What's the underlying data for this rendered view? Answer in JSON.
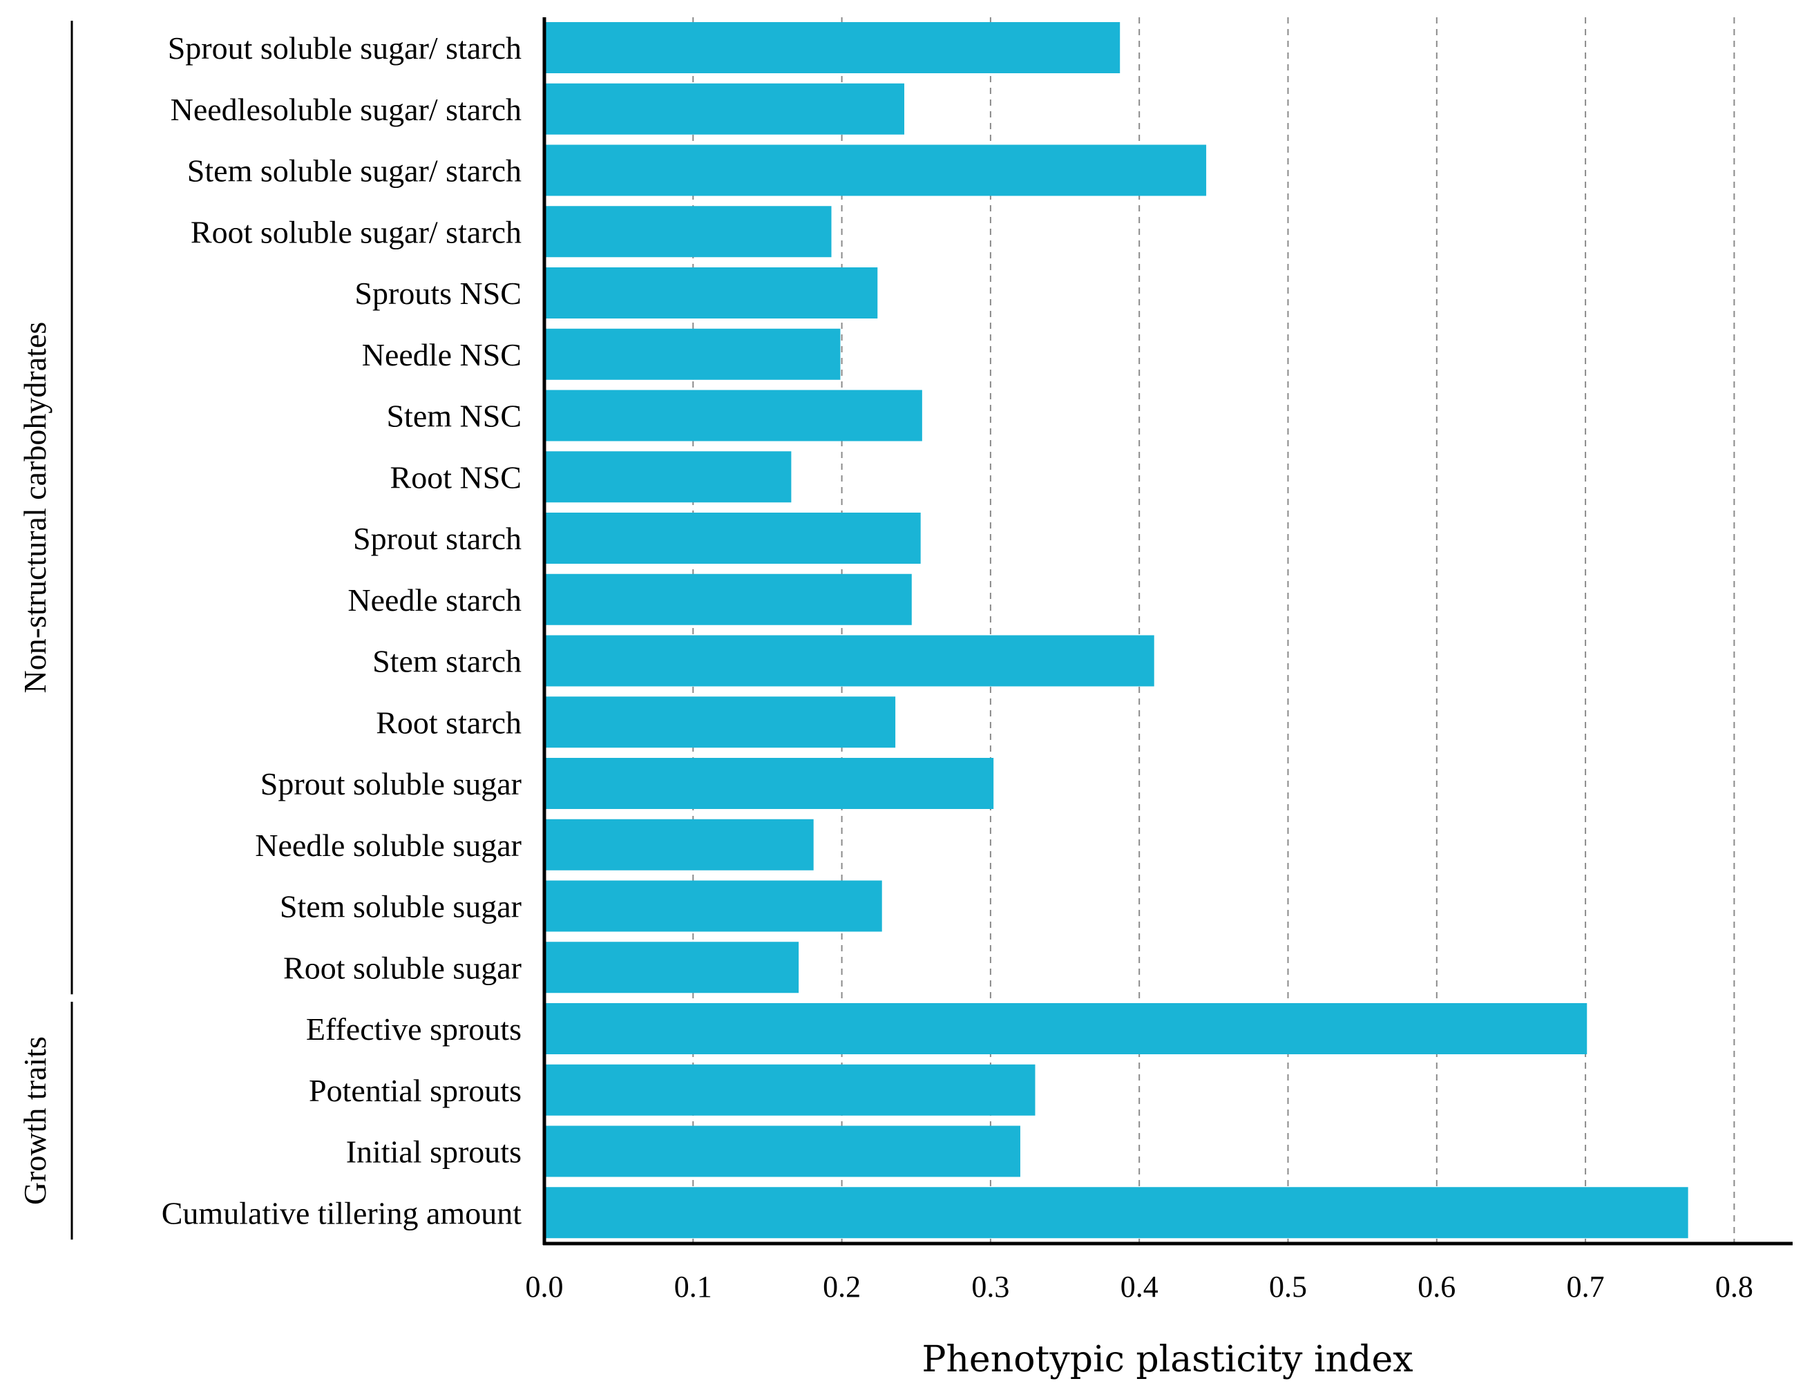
{
  "chart_data": {
    "type": "bar",
    "orientation": "horizontal",
    "xlabel": "Phenotypic plasticity index",
    "ylabel": "",
    "xlim": [
      0,
      0.8
    ],
    "x_ticks": [
      "0.0",
      "0.1",
      "0.2",
      "0.3",
      "0.4",
      "0.5",
      "0.6",
      "0.7",
      "0.8"
    ],
    "grid": "vertical dashed",
    "bar_color": "#1ab4d6",
    "categories": [
      "Sprout soluble sugar/ starch",
      "Needlesoluble sugar/ starch",
      "Stem soluble sugar/ starch",
      "Root soluble sugar/ starch",
      "Sprouts NSC",
      "Needle NSC",
      "Stem NSC",
      "Root NSC",
      "Sprout starch",
      "Needle starch",
      "Stem starch",
      "Root starch",
      "Sprout soluble sugar",
      "Needle soluble sugar",
      "Stem soluble sugar",
      "Root soluble sugar",
      "Effective sprouts",
      "Potential sprouts",
      "Initial sprouts",
      "Cumulative tillering amount"
    ],
    "values": [
      0.387,
      0.242,
      0.445,
      0.193,
      0.224,
      0.199,
      0.254,
      0.166,
      0.253,
      0.247,
      0.41,
      0.236,
      0.302,
      0.181,
      0.227,
      0.171,
      0.701,
      0.33,
      0.32,
      0.769
    ],
    "groups": [
      {
        "label": "Non-structural carbohydrates",
        "from": 0,
        "to": 15
      },
      {
        "label": "Growth traits",
        "from": 16,
        "to": 19
      }
    ]
  }
}
